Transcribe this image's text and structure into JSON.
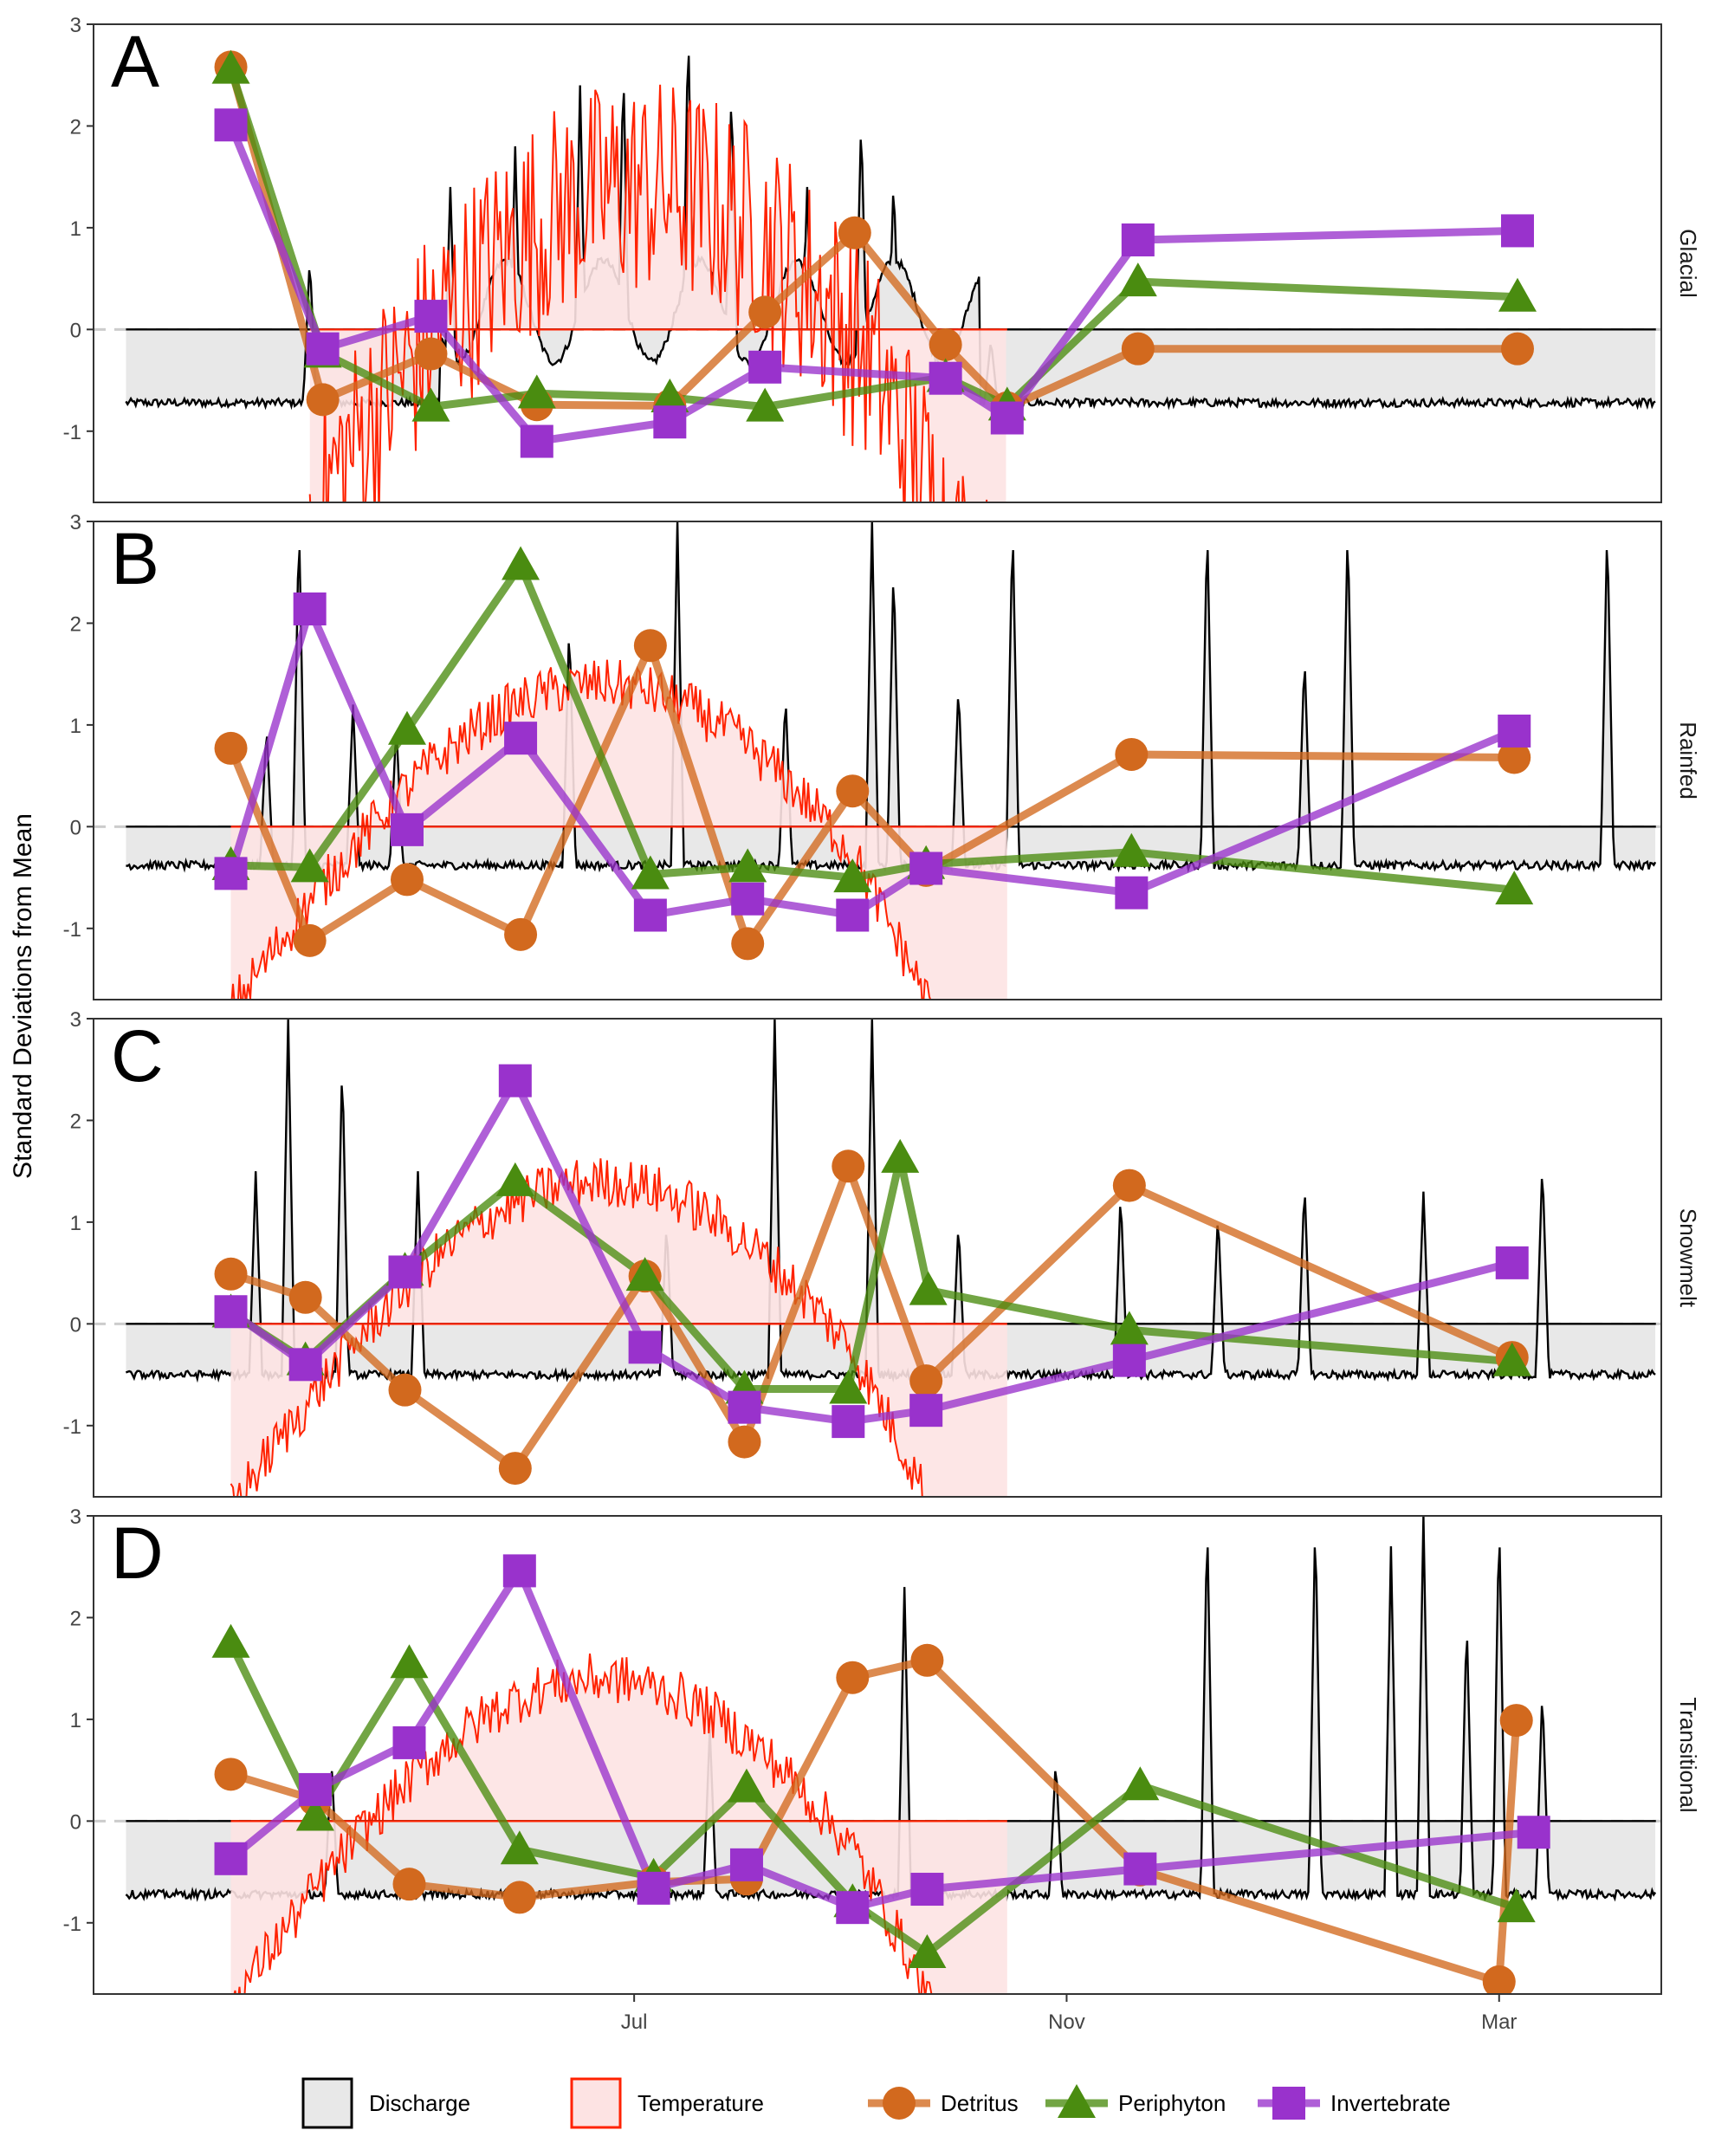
{
  "y_axis_label": "Standard Deviations from Mean",
  "legend": [
    {
      "label": "Discharge",
      "kind": "discharge-key"
    },
    {
      "label": "Temperature",
      "kind": "temperature-key"
    },
    {
      "label": "Detritus",
      "kind": "circle"
    },
    {
      "label": "Periphyton",
      "kind": "triangle"
    },
    {
      "label": "Invertebrate",
      "kind": "square"
    }
  ],
  "colors": {
    "detritus": "#D2691E",
    "periphyton": "#4A8C10",
    "invertebrate": "#9932CC",
    "discharge_line": "#000000",
    "discharge_fill": "#E8E8E8",
    "temperature_line": "#FF2200",
    "temperature_fill": "#FDE3E3",
    "zero_dashed": "#CCCCCC",
    "panel_border": "#333333"
  },
  "chart_data": {
    "type": "line",
    "x_ticks": [
      {
        "label": "Jul",
        "month": 5.0
      },
      {
        "label": "Nov",
        "month": 9.0
      },
      {
        "label": "Mar",
        "month": 13.0
      }
    ],
    "xlim_month": [
      0.0,
      14.5
    ],
    "ylim": [
      -1.7,
      3.0
    ],
    "y_ticks": [
      3,
      2,
      1,
      0,
      -1
    ],
    "grid": false,
    "legend_position": "bottom",
    "panels": [
      {
        "letter": "A",
        "strip": "Glacial",
        "series": [
          {
            "name": "Detritus",
            "marker": "circle",
            "x": [
              1.27,
              2.12,
              3.12,
              4.1,
              5.33,
              6.21,
              7.04,
              7.88,
              8.45,
              9.66,
              13.17
            ],
            "y": [
              2.58,
              -0.69,
              -0.24,
              -0.74,
              -0.75,
              0.17,
              0.95,
              -0.15,
              -0.77,
              -0.19,
              -0.19
            ]
          },
          {
            "name": "Periphyton",
            "marker": "triangle",
            "x": [
              1.27,
              2.12,
              3.12,
              4.1,
              5.33,
              6.21,
              7.88,
              8.45,
              9.66,
              13.17
            ],
            "y": [
              2.56,
              -0.23,
              -0.76,
              -0.63,
              -0.67,
              -0.76,
              -0.47,
              -0.75,
              0.47,
              0.32
            ]
          },
          {
            "name": "Invertebrate",
            "marker": "square",
            "x": [
              1.27,
              2.12,
              3.12,
              4.1,
              5.33,
              6.21,
              7.88,
              8.45,
              9.66,
              13.17
            ],
            "y": [
              2.01,
              -0.19,
              0.13,
              -1.1,
              -0.91,
              -0.37,
              -0.48,
              -0.87,
              0.88,
              0.97
            ]
          }
        ]
      },
      {
        "letter": "B",
        "strip": "Rainfed",
        "series": [
          {
            "name": "Detritus",
            "marker": "circle",
            "x": [
              1.27,
              2.0,
              2.9,
              3.95,
              5.15,
              6.05,
              7.02,
              7.7,
              9.6,
              13.14
            ],
            "y": [
              0.77,
              -1.12,
              -0.52,
              -1.06,
              1.78,
              -1.15,
              0.35,
              -0.43,
              0.71,
              0.68
            ]
          },
          {
            "name": "Periphyton",
            "marker": "triangle",
            "x": [
              1.27,
              2.0,
              2.9,
              3.95,
              5.15,
              6.05,
              7.02,
              7.7,
              9.6,
              13.14
            ],
            "y": [
              -0.38,
              -0.4,
              0.95,
              2.57,
              -0.47,
              -0.4,
              -0.5,
              -0.37,
              -0.25,
              -0.62
            ]
          },
          {
            "name": "Invertebrate",
            "marker": "square",
            "x": [
              1.27,
              2.0,
              2.9,
              3.95,
              5.15,
              6.05,
              7.02,
              7.7,
              9.6,
              13.14
            ],
            "y": [
              -0.46,
              2.14,
              -0.03,
              0.87,
              -0.87,
              -0.71,
              -0.87,
              -0.41,
              -0.65,
              0.94
            ]
          }
        ]
      },
      {
        "letter": "C",
        "strip": "Snowmelt",
        "series": [
          {
            "name": "Detritus",
            "marker": "circle",
            "x": [
              1.27,
              1.96,
              2.88,
              3.9,
              5.1,
              6.02,
              6.98,
              7.7,
              9.58,
              13.12
            ],
            "y": [
              0.49,
              0.26,
              -0.65,
              -1.42,
              0.47,
              -1.16,
              1.55,
              -0.56,
              1.36,
              -0.33
            ]
          },
          {
            "name": "Periphyton",
            "marker": "triangle",
            "x": [
              1.27,
              1.96,
              2.88,
              3.9,
              5.1,
              6.02,
              6.98,
              7.46,
              7.72,
              9.58,
              13.12
            ],
            "y": [
              0.11,
              -0.36,
              0.52,
              1.4,
              0.47,
              -0.64,
              -0.64,
              1.63,
              0.33,
              -0.06,
              -0.37
            ]
          },
          {
            "name": "Invertebrate",
            "marker": "square",
            "x": [
              1.27,
              1.96,
              2.88,
              3.9,
              5.1,
              6.02,
              6.98,
              7.7,
              9.58,
              13.12
            ],
            "y": [
              0.12,
              -0.4,
              0.51,
              2.39,
              -0.23,
              -0.82,
              -0.96,
              -0.85,
              -0.36,
              0.6
            ]
          }
        ]
      },
      {
        "letter": "D",
        "strip": "Transitional",
        "series": [
          {
            "name": "Detritus",
            "marker": "circle",
            "x": [
              1.27,
              2.05,
              2.92,
              3.94,
              5.18,
              6.04,
              7.02,
              7.71,
              9.68,
              13.0,
              13.16
            ],
            "y": [
              0.46,
              0.21,
              -0.62,
              -0.75,
              -0.6,
              -0.57,
              1.41,
              1.58,
              -0.48,
              -1.58,
              0.99
            ]
          },
          {
            "name": "Periphyton",
            "marker": "triangle",
            "x": [
              1.27,
              2.05,
              2.92,
              3.94,
              5.18,
              6.04,
              7.02,
              7.71,
              9.68,
              13.16
            ],
            "y": [
              1.75,
              0.05,
              1.55,
              -0.28,
              -0.55,
              0.33,
              -0.8,
              -1.3,
              0.35,
              -0.85
            ]
          },
          {
            "name": "Invertebrate",
            "marker": "square",
            "x": [
              1.27,
              2.05,
              2.92,
              3.94,
              5.18,
              6.04,
              7.02,
              7.71,
              9.68,
              13.32
            ],
            "y": [
              -0.37,
              0.31,
              0.77,
              2.46,
              -0.66,
              -0.43,
              -0.85,
              -0.67,
              -0.47,
              -0.11
            ]
          }
        ]
      }
    ]
  }
}
